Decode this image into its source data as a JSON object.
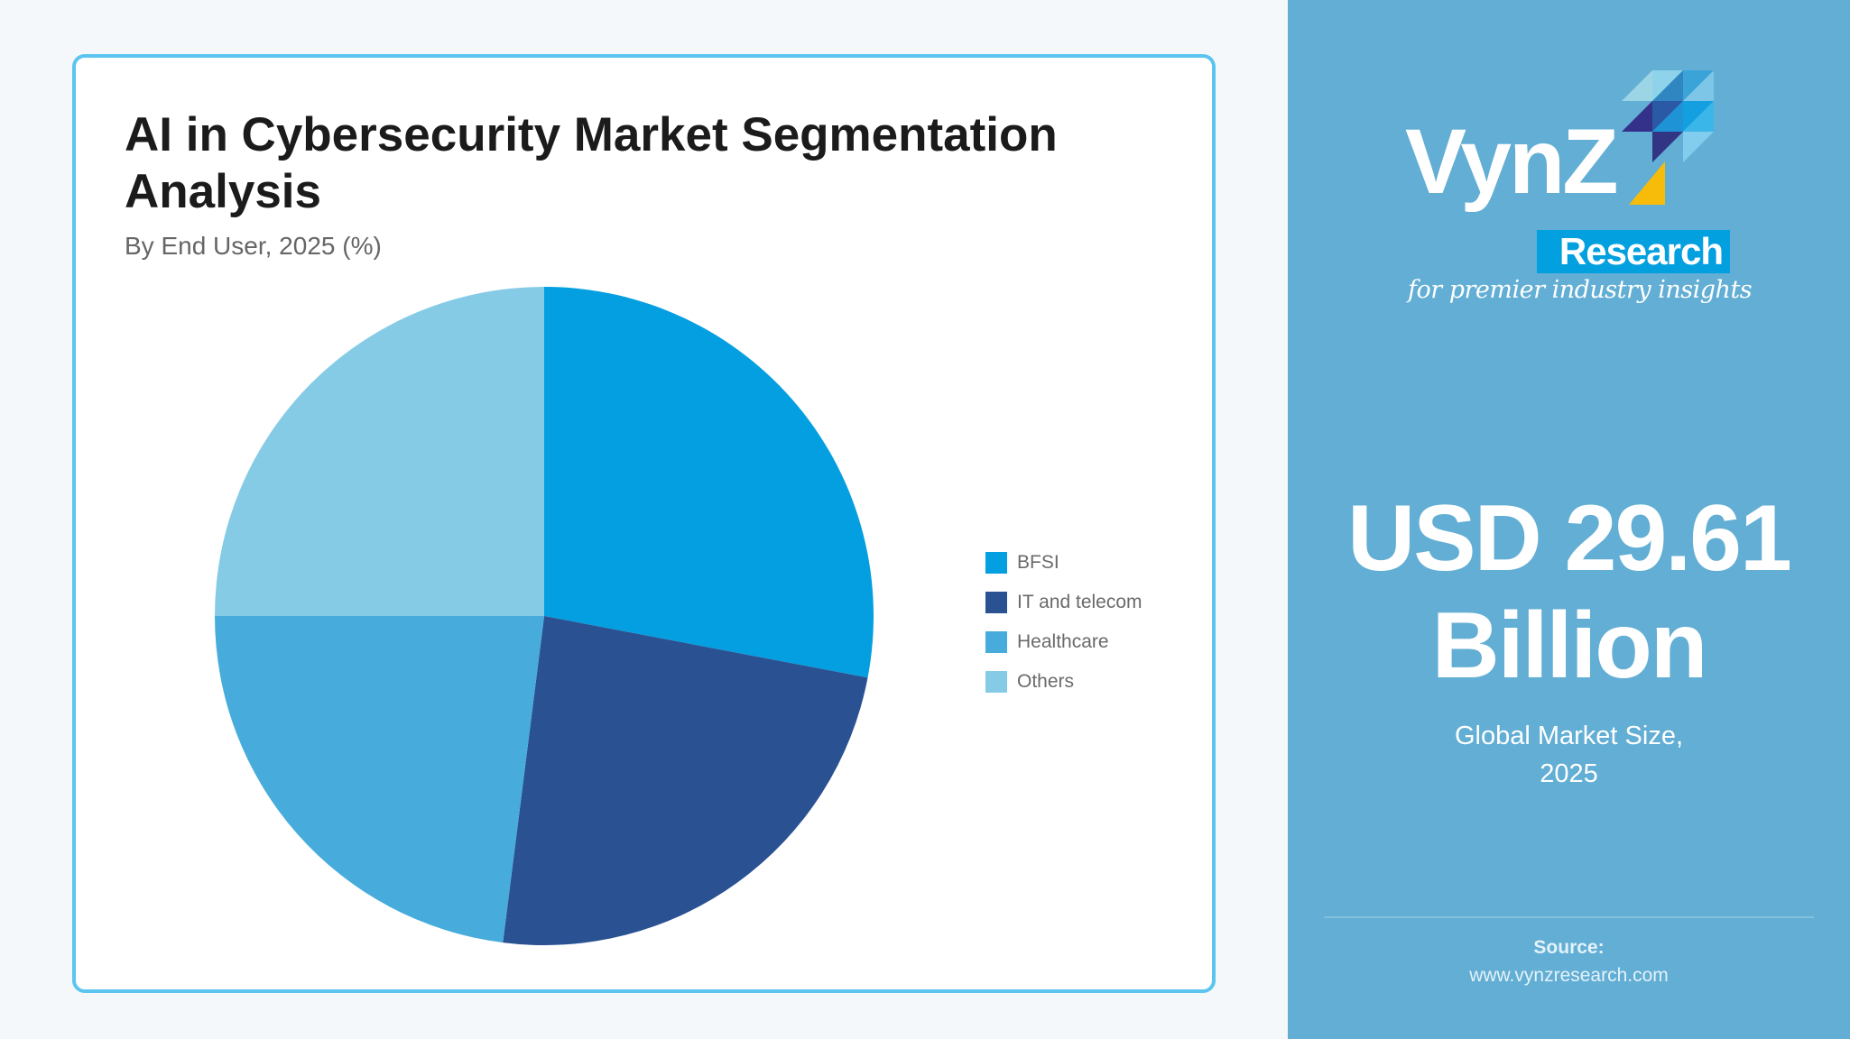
{
  "chart_card": {
    "title": "AI in Cybersecurity Market Segmentation Analysis",
    "subtitle": "By End User, 2025 (%)"
  },
  "chart_data": {
    "type": "pie",
    "title": "AI in Cybersecurity Market Segmentation Analysis",
    "subtitle": "By End User, 2025 (%)",
    "categories": [
      "BFSI",
      "IT and telecom",
      "Healthcare",
      "Others"
    ],
    "values": [
      28,
      24,
      23,
      25
    ],
    "colors": [
      "#039fe0",
      "#2a5192",
      "#47acdb",
      "#85cbe5"
    ],
    "start_angle_deg": 0,
    "direction": "clockwise",
    "legend_position": "right",
    "data_labels": false
  },
  "legend": {
    "items": [
      {
        "label": "BFSI",
        "color": "#039fe0"
      },
      {
        "label": "IT and telecom",
        "color": "#2a5192"
      },
      {
        "label": "Healthcare",
        "color": "#47acdb"
      },
      {
        "label": "Others",
        "color": "#85cbe5"
      }
    ]
  },
  "brand": {
    "name": "VynZ",
    "sub": "Research",
    "tagline": "for premier industry insights",
    "accent_color": "#03a0e0",
    "highlight_color": "#f7bb0a"
  },
  "market": {
    "value": "USD 29.61",
    "unit": "Billion",
    "caption_line1": "Global Market Size,",
    "caption_line2": "2025"
  },
  "source": {
    "label": "Source:",
    "url": "www.vynzresearch.com"
  },
  "colors": {
    "page_bg": "#f4f8fb",
    "card_border": "#5bc5f0",
    "side_panel": "#62aed4"
  }
}
